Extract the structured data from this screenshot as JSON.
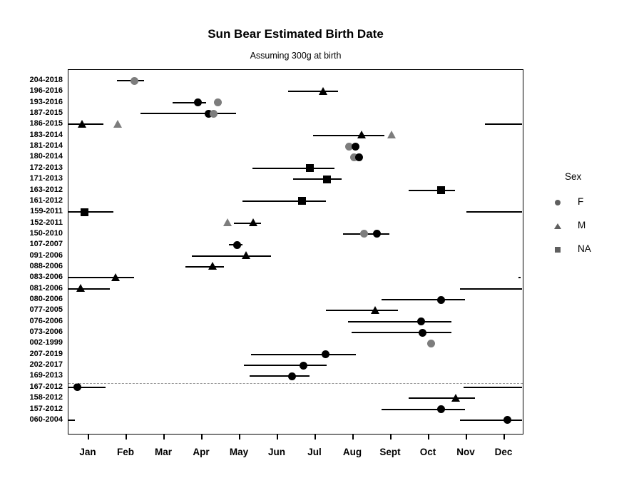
{
  "chart_data": {
    "type": "scatter",
    "subtype": "dot-with-horizontal-range-by-category",
    "title": "Sun Bear Estimated Birth Date",
    "subtitle": "Assuming 300g at birth",
    "xlabel": "",
    "ylabel": "",
    "x_domain_days": [
      0,
      365
    ],
    "x_tick_labels": [
      "Jan",
      "Feb",
      "Mar",
      "Apr",
      "May",
      "Jun",
      "Jul",
      "Aug",
      "Sept",
      "Oct",
      "Nov",
      "Dec"
    ],
    "grid": false,
    "shape_by_sex": {
      "F": "circle",
      "M": "triangle",
      "NA": "square"
    },
    "dashed_separator_after_row": "169-2013",
    "rows": [
      {
        "id": "204-2018",
        "sex": "F",
        "points": [
          {
            "day": 53,
            "shade": "gray"
          }
        ],
        "ranges": [
          [
            39,
            61
          ]
        ]
      },
      {
        "id": "196-2016",
        "sex": "M",
        "points": [
          {
            "day": 205,
            "shade": "black"
          }
        ],
        "ranges": [
          [
            177,
            217
          ]
        ]
      },
      {
        "id": "193-2016",
        "sex": "F",
        "points": [
          {
            "day": 104,
            "shade": "black"
          },
          {
            "day": 120,
            "shade": "gray"
          }
        ],
        "ranges": [
          [
            84,
            111
          ]
        ]
      },
      {
        "id": "187-2015",
        "sex": "F",
        "points": [
          {
            "day": 113,
            "shade": "black"
          },
          {
            "day": 117,
            "shade": "gray"
          }
        ],
        "ranges": [
          [
            58,
            135
          ]
        ]
      },
      {
        "id": "186-2015",
        "sex": "M",
        "points": [
          {
            "day": 11,
            "shade": "black"
          },
          {
            "day": 40,
            "shade": "gray"
          }
        ],
        "ranges": [
          [
            0,
            28
          ],
          [
            335,
            365
          ]
        ]
      },
      {
        "id": "183-2014",
        "sex": "M",
        "points": [
          {
            "day": 236,
            "shade": "black"
          },
          {
            "day": 260,
            "shade": "gray"
          }
        ],
        "ranges": [
          [
            197,
            254
          ]
        ]
      },
      {
        "id": "181-2014",
        "sex": "F",
        "points": [
          {
            "day": 226,
            "shade": "gray"
          },
          {
            "day": 231,
            "shade": "black"
          }
        ],
        "ranges": []
      },
      {
        "id": "180-2014",
        "sex": "F",
        "points": [
          {
            "day": 230,
            "shade": "gray"
          },
          {
            "day": 234,
            "shade": "black"
          }
        ],
        "ranges": []
      },
      {
        "id": "172-2013",
        "sex": "NA",
        "points": [
          {
            "day": 194,
            "shade": "black"
          }
        ],
        "ranges": [
          [
            148,
            214
          ]
        ]
      },
      {
        "id": "171-2013",
        "sex": "NA",
        "points": [
          {
            "day": 208,
            "shade": "black"
          }
        ],
        "ranges": [
          [
            181,
            220
          ]
        ]
      },
      {
        "id": "163-2012",
        "sex": "NA",
        "points": [
          {
            "day": 300,
            "shade": "black"
          }
        ],
        "ranges": [
          [
            274,
            311
          ]
        ]
      },
      {
        "id": "161-2012",
        "sex": "NA",
        "points": [
          {
            "day": 188,
            "shade": "black"
          }
        ],
        "ranges": [
          [
            140,
            207
          ]
        ]
      },
      {
        "id": "159-2011",
        "sex": "NA",
        "points": [
          {
            "day": 13,
            "shade": "black"
          }
        ],
        "ranges": [
          [
            0,
            36
          ],
          [
            320,
            365
          ]
        ]
      },
      {
        "id": "152-2011",
        "sex": "M",
        "points": [
          {
            "day": 128,
            "shade": "gray"
          },
          {
            "day": 149,
            "shade": "black"
          }
        ],
        "ranges": [
          [
            133,
            155
          ]
        ]
      },
      {
        "id": "150-2010",
        "sex": "F",
        "points": [
          {
            "day": 238,
            "shade": "gray"
          },
          {
            "day": 248,
            "shade": "black"
          }
        ],
        "ranges": [
          [
            221,
            258
          ]
        ]
      },
      {
        "id": "107-2007",
        "sex": "F",
        "points": [
          {
            "day": 136,
            "shade": "black"
          }
        ],
        "ranges": [
          [
            129,
            140
          ]
        ]
      },
      {
        "id": "091-2006",
        "sex": "M",
        "points": [
          {
            "day": 143,
            "shade": "black"
          }
        ],
        "ranges": [
          [
            99,
            163
          ]
        ]
      },
      {
        "id": "088-2006",
        "sex": "M",
        "points": [
          {
            "day": 116,
            "shade": "black"
          }
        ],
        "ranges": [
          [
            94,
            125
          ]
        ]
      },
      {
        "id": "083-2006",
        "sex": "M",
        "points": [
          {
            "day": 38,
            "shade": "black"
          }
        ],
        "ranges": [
          [
            0,
            53
          ],
          [
            362,
            364
          ]
        ]
      },
      {
        "id": "081-2006",
        "sex": "M",
        "points": [
          {
            "day": 10,
            "shade": "black"
          }
        ],
        "ranges": [
          [
            0,
            33
          ],
          [
            315,
            365
          ]
        ]
      },
      {
        "id": "080-2006",
        "sex": "F",
        "points": [
          {
            "day": 300,
            "shade": "black"
          }
        ],
        "ranges": [
          [
            252,
            319
          ]
        ]
      },
      {
        "id": "077-2005",
        "sex": "M",
        "points": [
          {
            "day": 247,
            "shade": "black"
          }
        ],
        "ranges": [
          [
            207,
            265
          ]
        ]
      },
      {
        "id": "076-2006",
        "sex": "F",
        "points": [
          {
            "day": 284,
            "shade": "black"
          }
        ],
        "ranges": [
          [
            225,
            308
          ]
        ]
      },
      {
        "id": "073-2006",
        "sex": "F",
        "points": [
          {
            "day": 285,
            "shade": "black"
          }
        ],
        "ranges": [
          [
            228,
            308
          ]
        ]
      },
      {
        "id": "002-1999",
        "sex": "F",
        "points": [
          {
            "day": 292,
            "shade": "gray"
          }
        ],
        "ranges": []
      },
      {
        "id": "207-2019",
        "sex": "F",
        "points": [
          {
            "day": 207,
            "shade": "black"
          }
        ],
        "ranges": [
          [
            147,
            231
          ]
        ]
      },
      {
        "id": "202-2017",
        "sex": "F",
        "points": [
          {
            "day": 189,
            "shade": "black"
          }
        ],
        "ranges": [
          [
            141,
            208
          ]
        ]
      },
      {
        "id": "169-2013",
        "sex": "F",
        "points": [
          {
            "day": 180,
            "shade": "black"
          }
        ],
        "ranges": [
          [
            146,
            194
          ]
        ]
      },
      {
        "id": "167-2012",
        "sex": "F",
        "points": [
          {
            "day": 7,
            "shade": "black"
          }
        ],
        "ranges": [
          [
            0,
            30
          ],
          [
            318,
            365
          ]
        ]
      },
      {
        "id": "158-2012",
        "sex": "M",
        "points": [
          {
            "day": 312,
            "shade": "black"
          }
        ],
        "ranges": [
          [
            274,
            327
          ]
        ]
      },
      {
        "id": "157-2012",
        "sex": "F",
        "points": [
          {
            "day": 300,
            "shade": "black"
          }
        ],
        "ranges": [
          [
            252,
            319
          ]
        ]
      },
      {
        "id": "060-2004",
        "sex": "F",
        "points": [
          {
            "day": 353,
            "shade": "black"
          }
        ],
        "ranges": [
          [
            315,
            365
          ],
          [
            0,
            5
          ]
        ]
      }
    ],
    "legend": {
      "title": "Sex",
      "position": "right",
      "entries": [
        {
          "label": "F",
          "shape": "circle"
        },
        {
          "label": "M",
          "shape": "triangle"
        },
        {
          "label": "NA",
          "shape": "square"
        }
      ]
    },
    "colors": {
      "black": "#000000",
      "gray": "#7d7d7d",
      "legend_symbol": "#5f5f5f",
      "dashed_line": "#999999"
    }
  }
}
